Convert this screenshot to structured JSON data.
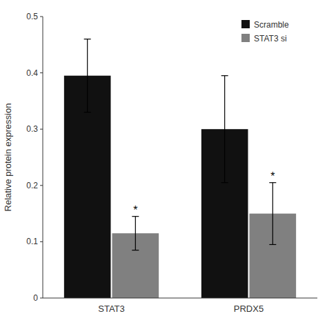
{
  "chart_data": {
    "type": "bar",
    "categories": [
      "STAT3",
      "PRDX5"
    ],
    "series": [
      {
        "name": "Scramble",
        "color": "#111111",
        "values": [
          0.395,
          0.3
        ],
        "errors": [
          0.065,
          0.095
        ]
      },
      {
        "name": "STAT3 si",
        "color": "#808080",
        "values": [
          0.115,
          0.15
        ],
        "errors": [
          0.03,
          0.055
        ],
        "annotations": [
          "*",
          "*"
        ]
      }
    ],
    "ylabel": "Relative protein expression",
    "ylim": [
      0,
      0.5
    ],
    "yticks": [
      0,
      0.1,
      0.2,
      0.3,
      0.4,
      0.5
    ],
    "legend": "upper right",
    "grid": false
  }
}
